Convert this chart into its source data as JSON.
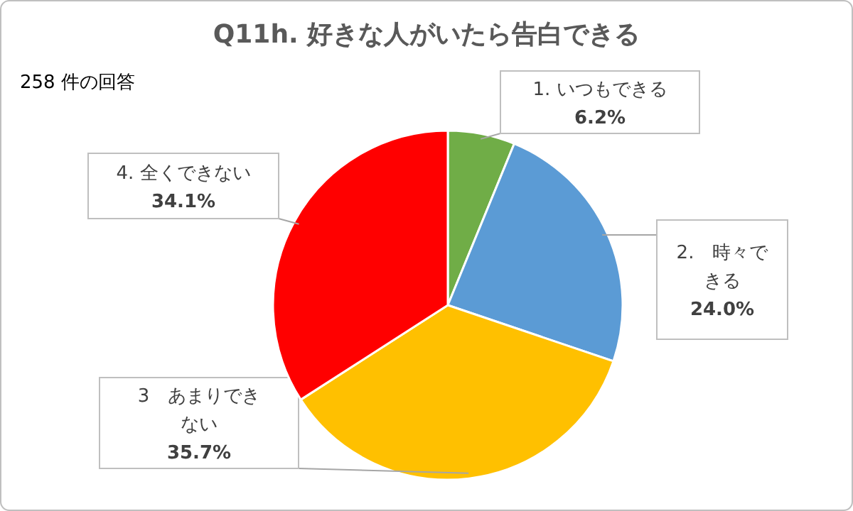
{
  "chart_data": {
    "type": "pie",
    "title": "Q11h. 好きな人がいたら告白できる",
    "annotations": [
      "258 件の回答"
    ],
    "categories": [
      "1. いつもできる",
      "2.　時々できる",
      "3　あまりできない",
      "4. 全くできない"
    ],
    "values": [
      6.2,
      24.0,
      35.7,
      34.1
    ],
    "colors": [
      "#70ad47",
      "#5b9bd5",
      "#ffc000",
      "#ff0000"
    ],
    "value_labels": [
      "6.2%",
      "24.0%",
      "35.7%",
      "34.1%"
    ]
  }
}
